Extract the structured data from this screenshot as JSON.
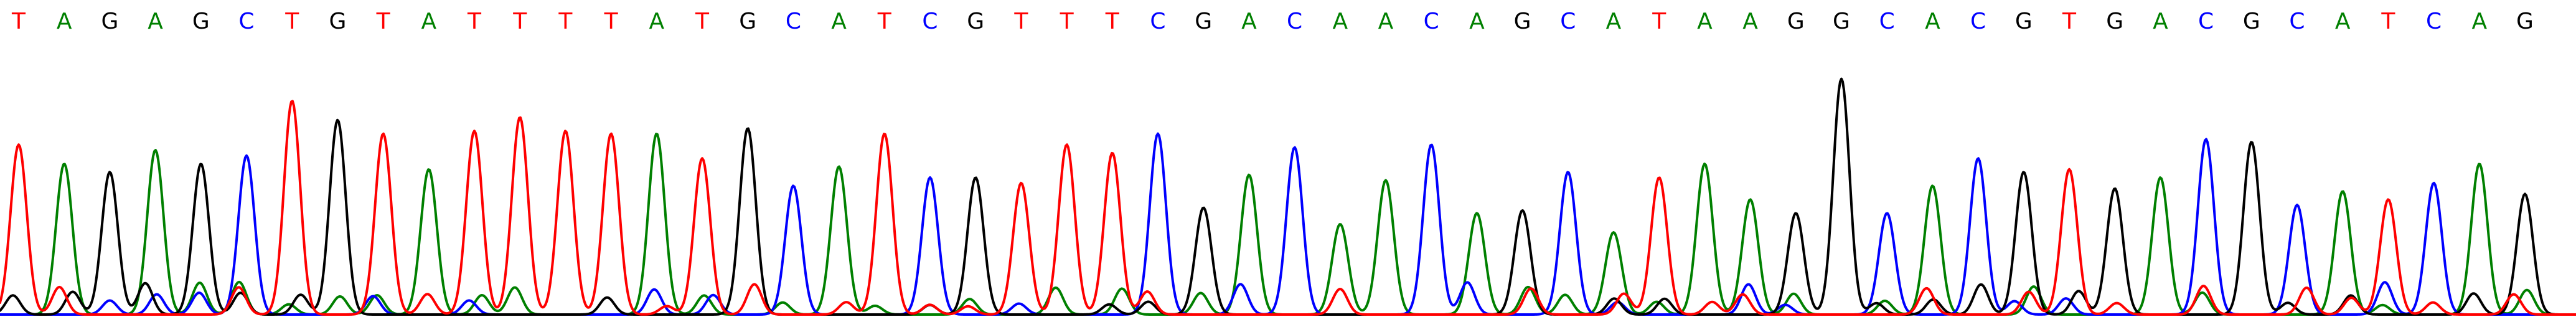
{
  "chart_data": {
    "type": "line",
    "title": "",
    "xlabel": "",
    "ylabel": "",
    "sequence": [
      "T",
      "A",
      "G",
      "A",
      "G",
      "C",
      "T",
      "G",
      "T",
      "A",
      "T",
      "T",
      "T",
      "T",
      "A",
      "T",
      "G",
      "C",
      "A",
      "T",
      "C",
      "G",
      "T",
      "T",
      "T",
      "C",
      "G",
      "A",
      "C",
      "A",
      "A",
      "C",
      "A",
      "G",
      "C",
      "A",
      "T",
      "A",
      "A",
      "G",
      "G",
      "C",
      "A",
      "C",
      "G",
      "T",
      "G",
      "A",
      "C",
      "G",
      "C",
      "A",
      "T",
      "C",
      "A",
      "G"
    ],
    "peak_heights": [
      0.62,
      0.55,
      0.52,
      0.6,
      0.55,
      0.58,
      0.78,
      0.71,
      0.66,
      0.53,
      0.67,
      0.72,
      0.67,
      0.66,
      0.66,
      0.57,
      0.68,
      0.47,
      0.54,
      0.66,
      0.5,
      0.5,
      0.48,
      0.62,
      0.59,
      0.66,
      0.39,
      0.51,
      0.61,
      0.33,
      0.49,
      0.62,
      0.37,
      0.38,
      0.52,
      0.3,
      0.5,
      0.55,
      0.42,
      0.37,
      0.86,
      0.37,
      0.47,
      0.57,
      0.52,
      0.53,
      0.46,
      0.5,
      0.64,
      0.63,
      0.4,
      0.45,
      0.42,
      0.48,
      0.55,
      0.44
    ],
    "ylim": [
      0,
      1
    ],
    "series": [
      {
        "base": "A",
        "color": "#008000"
      },
      {
        "base": "C",
        "color": "#0000ff"
      },
      {
        "base": "G",
        "color": "#000000"
      },
      {
        "base": "T",
        "color": "#ff0000"
      }
    ],
    "grid": false,
    "legend": "none"
  }
}
